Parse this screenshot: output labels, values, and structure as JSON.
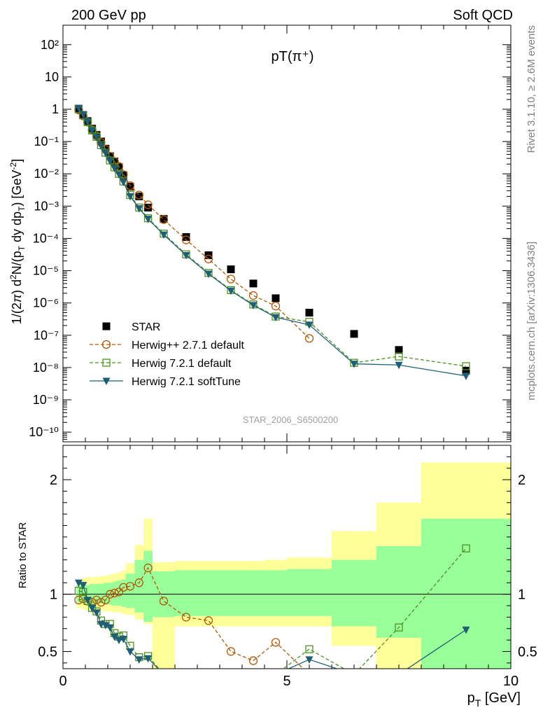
{
  "header": {
    "left": "200 GeV pp",
    "right": "Soft QCD",
    "rivet_label": "Rivet 3.1.10, ≥ 2.6M events",
    "site_label": "mcplots.cern.ch [arXiv:1306.3436]"
  },
  "chart_data": [
    {
      "type": "scatter",
      "title": "pT(π⁺)",
      "watermark": "STAR_2006_S6500200",
      "ylabel": "1/(2π) d²N/(p_T dy dp_T) [GeV⁻²]",
      "yscale": "log",
      "ylim": [
        5e-11,
        400
      ],
      "xlim": [
        0,
        10
      ],
      "ytick_labels": [
        "10²",
        "10",
        "1",
        "10⁻¹",
        "10⁻²",
        "10⁻³",
        "10⁻⁴",
        "10⁻⁵",
        "10⁻⁶",
        "10⁻⁷",
        "10⁻⁸",
        "10⁻⁹",
        "10⁻¹⁰"
      ],
      "legend_position": "bottom-left",
      "series": [
        {
          "name": "STAR",
          "color": "#000000",
          "marker": "filled-square",
          "x": [
            0.35,
            0.45,
            0.55,
            0.65,
            0.75,
            0.85,
            0.95,
            1.05,
            1.15,
            1.25,
            1.35,
            1.5,
            1.7,
            1.9,
            2.25,
            2.75,
            3.25,
            3.75,
            4.25,
            4.75,
            5.5,
            6.5,
            7.5,
            9.0
          ],
          "y": [
            1.0,
            0.65,
            0.43,
            0.25,
            0.16,
            0.1,
            0.06,
            0.035,
            0.024,
            0.016,
            0.009,
            0.004,
            0.002,
            0.0009,
            0.0004,
            0.00011,
            3e-05,
            1.1e-05,
            4e-06,
            1.4e-06,
            5e-07,
            1.1e-07,
            3.5e-08,
            8e-09
          ]
        },
        {
          "name": "Herwig++ 2.7.1 default",
          "color": "#b35806",
          "marker": "open-circle",
          "dash": "5,3",
          "x": [
            0.35,
            0.45,
            0.55,
            0.65,
            0.75,
            0.85,
            0.95,
            1.05,
            1.15,
            1.25,
            1.35,
            1.5,
            1.7,
            1.9,
            2.25,
            2.75,
            3.25,
            3.75,
            4.25,
            4.75,
            5.5
          ],
          "y": [
            0.95,
            0.62,
            0.4,
            0.23,
            0.15,
            0.093,
            0.057,
            0.035,
            0.024,
            0.017,
            0.0095,
            0.0043,
            0.0022,
            0.0011,
            0.00038,
            9e-05,
            2.3e-05,
            5.5e-06,
            1.7e-06,
            8e-07,
            8e-08
          ]
        },
        {
          "name": "Herwig 7.2.1 default",
          "color": "#4d9221",
          "marker": "open-square",
          "dash": "5,3",
          "x": [
            0.35,
            0.45,
            0.55,
            0.65,
            0.75,
            0.85,
            0.95,
            1.05,
            1.15,
            1.25,
            1.35,
            1.5,
            1.7,
            1.9,
            2.25,
            2.75,
            3.25,
            3.75,
            4.25,
            4.75,
            5.5,
            6.5,
            7.5,
            9.0
          ],
          "y": [
            1.03,
            0.66,
            0.4,
            0.22,
            0.14,
            0.077,
            0.045,
            0.026,
            0.016,
            0.01,
            0.0058,
            0.0022,
            0.0009,
            0.00042,
            0.00014,
            3.2e-05,
            8.5e-06,
            2.5e-06,
            9e-07,
            3.8e-07,
            2.6e-07,
            1.4e-08,
            2.2e-08,
            1.1e-08
          ]
        },
        {
          "name": "Herwig 7.2.1 softTune",
          "color": "#1f5f75",
          "marker": "filled-triangle-down",
          "dash": "",
          "x": [
            0.35,
            0.45,
            0.55,
            0.65,
            0.75,
            0.85,
            0.95,
            1.05,
            1.15,
            1.25,
            1.35,
            1.5,
            1.7,
            1.9,
            2.25,
            2.75,
            3.25,
            3.75,
            4.25,
            4.75,
            5.5,
            6.5,
            7.5,
            9.0
          ],
          "y": [
            1.1,
            0.7,
            0.41,
            0.22,
            0.135,
            0.074,
            0.044,
            0.025,
            0.015,
            0.0095,
            0.0055,
            0.002,
            0.00085,
            0.0004,
            0.00013,
            3e-05,
            8e-06,
            2.4e-06,
            8.5e-07,
            3.6e-07,
            2.1e-07,
            1.3e-08,
            1.2e-08,
            5.5e-09
          ]
        }
      ]
    },
    {
      "type": "scatter",
      "ylabel": "Ratio to STAR",
      "xlabel": "p_T [GeV]",
      "xlim": [
        0,
        10
      ],
      "ylim": [
        0.35,
        2.3
      ],
      "xtick_labels": [
        "0",
        "5",
        "10"
      ],
      "ytick_labels": [
        "0.5",
        "1",
        "2"
      ],
      "bands": {
        "bin_edges": [
          0.3,
          0.4,
          0.5,
          0.6,
          0.7,
          0.8,
          0.9,
          1.0,
          1.1,
          1.2,
          1.3,
          1.4,
          1.6,
          1.8,
          2.0,
          2.5,
          3.0,
          3.5,
          4.0,
          4.5,
          5.0,
          6.0,
          7.0,
          8.0,
          10.0
        ],
        "stat_sys_low": [
          0.88,
          0.87,
          0.86,
          0.86,
          0.86,
          0.86,
          0.85,
          0.85,
          0.84,
          0.84,
          0.83,
          0.82,
          0.78,
          0.74,
          0.3,
          0.72,
          0.72,
          0.72,
          0.72,
          0.72,
          0.72,
          0.55,
          0.3,
          0.3
        ],
        "stat_sys_high": [
          1.13,
          1.14,
          1.15,
          1.15,
          1.15,
          1.16,
          1.16,
          1.17,
          1.18,
          1.19,
          1.21,
          1.27,
          1.43,
          1.66,
          1.28,
          1.29,
          1.29,
          1.29,
          1.29,
          1.3,
          1.32,
          1.55,
          1.8,
          2.15
        ],
        "stat_low": [
          0.93,
          0.93,
          0.92,
          0.92,
          0.92,
          0.92,
          0.91,
          0.91,
          0.9,
          0.9,
          0.89,
          0.88,
          0.84,
          0.76,
          0.8,
          0.81,
          0.81,
          0.81,
          0.81,
          0.81,
          0.81,
          0.72,
          0.62,
          0.3
        ],
        "stat_high": [
          1.08,
          1.08,
          1.08,
          1.09,
          1.09,
          1.09,
          1.1,
          1.1,
          1.11,
          1.12,
          1.13,
          1.18,
          1.3,
          1.38,
          1.2,
          1.21,
          1.21,
          1.21,
          1.21,
          1.21,
          1.22,
          1.3,
          1.42,
          1.66
        ]
      },
      "series": [
        {
          "name": "Herwig++ 2.7.1 default",
          "color": "#b35806",
          "marker": "open-circle",
          "dash": "5,3",
          "x": [
            0.35,
            0.45,
            0.55,
            0.65,
            0.75,
            0.85,
            0.95,
            1.05,
            1.15,
            1.25,
            1.35,
            1.5,
            1.7,
            1.9,
            2.25,
            2.75,
            3.25,
            3.75,
            4.25,
            4.75,
            5.5
          ],
          "y": [
            0.95,
            0.96,
            0.94,
            0.93,
            0.95,
            0.93,
            0.95,
            1.0,
            1.01,
            1.02,
            1.06,
            1.07,
            1.1,
            1.23,
            0.94,
            0.8,
            0.77,
            0.5,
            0.42,
            0.58,
            0.3
          ]
        },
        {
          "name": "Herwig 7.2.1 default",
          "color": "#4d9221",
          "marker": "open-square",
          "dash": "5,3",
          "x": [
            0.35,
            0.45,
            0.55,
            0.65,
            0.75,
            0.85,
            0.95,
            1.05,
            1.15,
            1.25,
            1.35,
            1.5,
            1.7,
            1.9,
            2.25,
            2.75,
            3.25,
            3.75,
            4.25,
            4.75,
            5.5,
            6.5,
            7.5,
            9.0
          ],
          "y": [
            1.03,
            1.02,
            0.94,
            0.88,
            0.85,
            0.77,
            0.74,
            0.74,
            0.66,
            0.63,
            0.64,
            0.55,
            0.45,
            0.46,
            0.3,
            0.3,
            0.3,
            0.3,
            0.3,
            0.3,
            0.52,
            0.3,
            0.71,
            1.4
          ]
        },
        {
          "name": "Herwig 7.2.1 softTune",
          "color": "#1f5f75",
          "marker": "filled-triangle-down",
          "dash": "",
          "x": [
            0.35,
            0.45,
            0.55,
            0.65,
            0.75,
            0.85,
            0.95,
            1.05,
            1.15,
            1.25,
            1.35,
            1.5,
            1.7,
            1.9,
            2.25,
            2.75,
            3.25,
            3.75,
            4.25,
            4.75,
            5.5,
            6.5,
            7.5,
            9.0
          ],
          "y": [
            1.1,
            1.08,
            0.95,
            0.88,
            0.84,
            0.74,
            0.73,
            0.71,
            0.63,
            0.6,
            0.61,
            0.5,
            0.43,
            0.44,
            0.3,
            0.3,
            0.3,
            0.3,
            0.3,
            0.3,
            0.43,
            0.3,
            0.3,
            0.69
          ]
        }
      ]
    }
  ]
}
